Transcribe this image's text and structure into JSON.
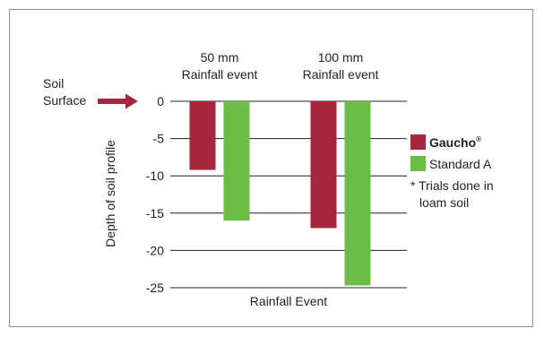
{
  "chart_data": {
    "type": "bar",
    "categories": [
      "50 mm Rainfall event",
      "100 mm Rainfall event"
    ],
    "category_labels": [
      [
        "50 mm",
        "Rainfall event"
      ],
      [
        "100 mm",
        "Rainfall event"
      ]
    ],
    "series": [
      {
        "name": "Gaucho",
        "name_superscript": "®",
        "color": "#a6263e",
        "values": [
          -9.2,
          -17
        ]
      },
      {
        "name": "Standard A",
        "color": "#6cbd45",
        "values": [
          -16,
          -24.7
        ]
      }
    ],
    "xlabel": "Rainfall Event",
    "ylabel": "Depth of soil profile",
    "ylim": [
      -25,
      0
    ],
    "yticks": [
      0,
      -5,
      -10,
      -15,
      -20,
      -25
    ],
    "ytick_labels": [
      "0",
      "-5",
      "-10",
      "-15",
      "-20",
      "-25"
    ],
    "grid": true,
    "legend_position": "right",
    "annotations": {
      "surface_label": [
        "Soil",
        "Surface"
      ],
      "surface_arrow_color": "#a6263e",
      "footnote": [
        "* Trials done in",
        "loam soil"
      ]
    }
  }
}
